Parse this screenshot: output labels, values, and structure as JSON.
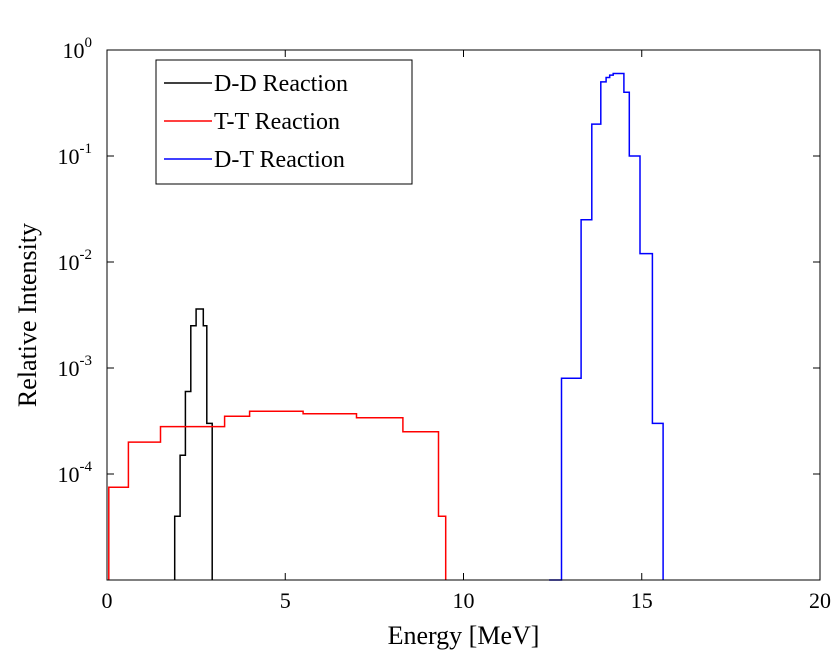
{
  "chart_data": {
    "type": "line",
    "step": true,
    "x_scale": "linear",
    "y_scale": "log",
    "xlabel": "Energy [MeV]",
    "ylabel": "Relative Intensity",
    "xlim": [
      0,
      20
    ],
    "ylim": [
      1e-05,
      1
    ],
    "x_ticks": [
      0,
      5,
      10,
      15,
      20
    ],
    "x_tick_labels": [
      "0",
      "5",
      "10",
      "15",
      "20"
    ],
    "y_ticks": [
      0.0001,
      0.001,
      0.01,
      0.1,
      1
    ],
    "y_tick_labels": [
      {
        "base": "10",
        "exp": "-4"
      },
      {
        "base": "10",
        "exp": "-3"
      },
      {
        "base": "10",
        "exp": "-2"
      },
      {
        "base": "10",
        "exp": "-1"
      },
      {
        "base": "10",
        "exp": "0"
      }
    ],
    "grid": false,
    "legend_position": "top-left",
    "series": [
      {
        "name": "D-D Reaction",
        "color": "#000000",
        "points": [
          [
            1.9,
            1e-05
          ],
          [
            1.9,
            4e-05
          ],
          [
            2.05,
            4e-05
          ],
          [
            2.05,
            0.00015
          ],
          [
            2.2,
            0.00015
          ],
          [
            2.2,
            0.0006
          ],
          [
            2.35,
            0.0006
          ],
          [
            2.35,
            0.0025
          ],
          [
            2.5,
            0.0025
          ],
          [
            2.5,
            0.0036
          ],
          [
            2.7,
            0.0036
          ],
          [
            2.7,
            0.0025
          ],
          [
            2.8,
            0.0025
          ],
          [
            2.8,
            0.0003
          ],
          [
            2.95,
            0.0003
          ],
          [
            2.95,
            1e-05
          ]
        ]
      },
      {
        "name": "T-T Reaction",
        "color": "#ff0000",
        "points": [
          [
            0.05,
            1e-05
          ],
          [
            0.05,
            7.5e-05
          ],
          [
            0.6,
            7.5e-05
          ],
          [
            0.6,
            0.0002
          ],
          [
            1.5,
            0.0002
          ],
          [
            1.5,
            0.00028
          ],
          [
            3.3,
            0.00028
          ],
          [
            3.3,
            0.00035
          ],
          [
            4.0,
            0.00035
          ],
          [
            4.0,
            0.00039
          ],
          [
            5.5,
            0.00039
          ],
          [
            5.5,
            0.00037
          ],
          [
            7.0,
            0.00037
          ],
          [
            7.0,
            0.00034
          ],
          [
            8.3,
            0.00034
          ],
          [
            8.3,
            0.00025
          ],
          [
            9.3,
            0.00025
          ],
          [
            9.3,
            4e-05
          ],
          [
            9.5,
            4e-05
          ],
          [
            9.5,
            1e-05
          ]
        ]
      },
      {
        "name": "D-T Reaction",
        "color": "#0000ff",
        "points": [
          [
            12.4,
            1e-05
          ],
          [
            12.75,
            1e-05
          ],
          [
            12.75,
            0.0008
          ],
          [
            13.3,
            0.0008
          ],
          [
            13.3,
            0.025
          ],
          [
            13.6,
            0.025
          ],
          [
            13.6,
            0.2
          ],
          [
            13.85,
            0.2
          ],
          [
            13.85,
            0.5
          ],
          [
            14.0,
            0.5
          ],
          [
            14.0,
            0.55
          ],
          [
            14.1,
            0.55
          ],
          [
            14.1,
            0.58
          ],
          [
            14.2,
            0.58
          ],
          [
            14.2,
            0.6
          ],
          [
            14.5,
            0.6
          ],
          [
            14.5,
            0.4
          ],
          [
            14.65,
            0.4
          ],
          [
            14.65,
            0.1
          ],
          [
            14.95,
            0.1
          ],
          [
            14.95,
            0.012
          ],
          [
            15.3,
            0.012
          ],
          [
            15.3,
            0.0003
          ],
          [
            15.6,
            0.0003
          ],
          [
            15.6,
            1e-05
          ]
        ]
      }
    ]
  }
}
